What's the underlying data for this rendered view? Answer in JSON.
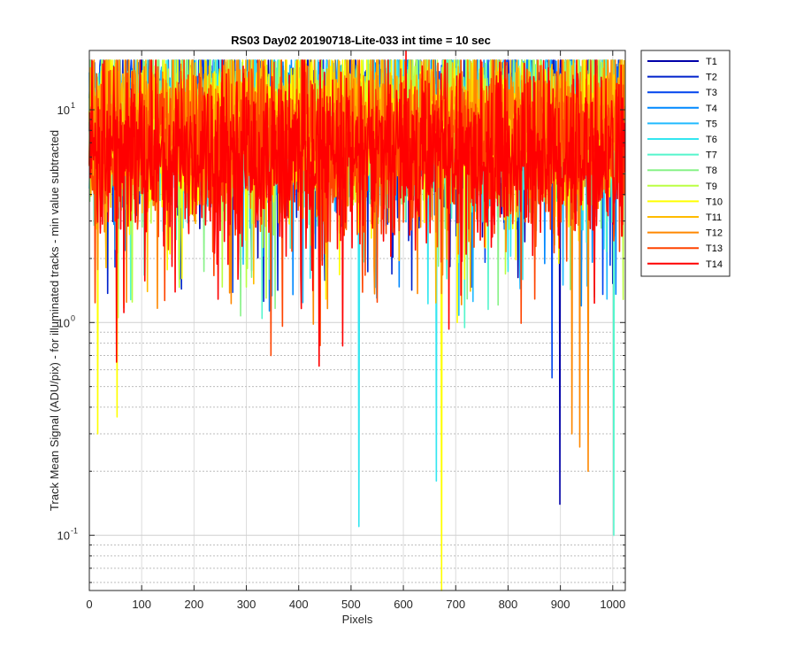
{
  "chart_data": {
    "type": "line",
    "title": "RS03 Day02 20190718-Lite-033 int time = 10 sec",
    "xlabel": "Pixels",
    "ylabel": "Track Mean Signal (ADU/pix) - for illuminated tracks - min value subtracted",
    "xlim": [
      0,
      1024
    ],
    "ylim": [
      0.055,
      19
    ],
    "yscale": "log",
    "grid": true,
    "legend_position": "outside-right",
    "x_ticks": [
      0,
      100,
      200,
      300,
      400,
      500,
      600,
      700,
      800,
      900,
      1000
    ],
    "x_tick_labels": [
      "0",
      "100",
      "200",
      "300",
      "400",
      "500",
      "600",
      "700",
      "800",
      "900",
      "1000"
    ],
    "y_ticks": [
      0.1,
      1,
      10
    ],
    "y_tick_labels": [
      "10",
      "10",
      "10"
    ],
    "y_tick_exponents": [
      "-1",
      "0",
      "1"
    ],
    "series": [
      {
        "name": "T1",
        "color": "#0000aa",
        "baseline": 9.5,
        "spread": 0.35
      },
      {
        "name": "T2",
        "color": "#0022cc",
        "baseline": 9.3,
        "spread": 0.35
      },
      {
        "name": "T3",
        "color": "#0044ee",
        "baseline": 9.2,
        "spread": 0.35
      },
      {
        "name": "T4",
        "color": "#0088ff",
        "baseline": 9.0,
        "spread": 0.35
      },
      {
        "name": "T5",
        "color": "#22bbff",
        "baseline": 8.6,
        "spread": 0.38
      },
      {
        "name": "T6",
        "color": "#33e6f0",
        "baseline": 8.4,
        "spread": 0.4
      },
      {
        "name": "T7",
        "color": "#55f5cc",
        "baseline": 8.4,
        "spread": 0.4
      },
      {
        "name": "T8",
        "color": "#88f288",
        "baseline": 8.5,
        "spread": 0.4
      },
      {
        "name": "T9",
        "color": "#bbff44",
        "baseline": 8.8,
        "spread": 0.4
      },
      {
        "name": "T10",
        "color": "#ffff00",
        "baseline": 8.6,
        "spread": 0.42
      },
      {
        "name": "T11",
        "color": "#ffbb00",
        "baseline": 9.3,
        "spread": 0.35
      },
      {
        "name": "T12",
        "color": "#ff8800",
        "baseline": 8.2,
        "spread": 0.4
      },
      {
        "name": "T13",
        "color": "#ff4400",
        "baseline": 6.8,
        "spread": 0.45
      },
      {
        "name": "T14",
        "color": "#ff0000",
        "baseline": 6.2,
        "spread": 0.45
      }
    ],
    "notable_dips": [
      {
        "series": "T1",
        "x": 899,
        "y": 0.14
      },
      {
        "series": "T3",
        "x": 884,
        "y": 0.55
      },
      {
        "series": "T6",
        "x": 515,
        "y": 0.11
      },
      {
        "series": "T6",
        "x": 663,
        "y": 0.18
      },
      {
        "series": "T7",
        "x": 1002,
        "y": 0.1
      },
      {
        "series": "T10",
        "x": 673,
        "y": 0.055
      },
      {
        "series": "T10",
        "x": 16,
        "y": 0.3
      },
      {
        "series": "T10",
        "x": 53,
        "y": 0.36
      },
      {
        "series": "T12",
        "x": 953,
        "y": 0.2
      },
      {
        "series": "T12",
        "x": 937,
        "y": 0.26
      },
      {
        "series": "T12",
        "x": 922,
        "y": 0.3
      },
      {
        "series": "T13",
        "x": 441,
        "y": 0.78
      },
      {
        "series": "T13",
        "x": 347,
        "y": 0.7
      }
    ],
    "peak": {
      "series": "T14",
      "x": 605,
      "y": 19
    }
  }
}
